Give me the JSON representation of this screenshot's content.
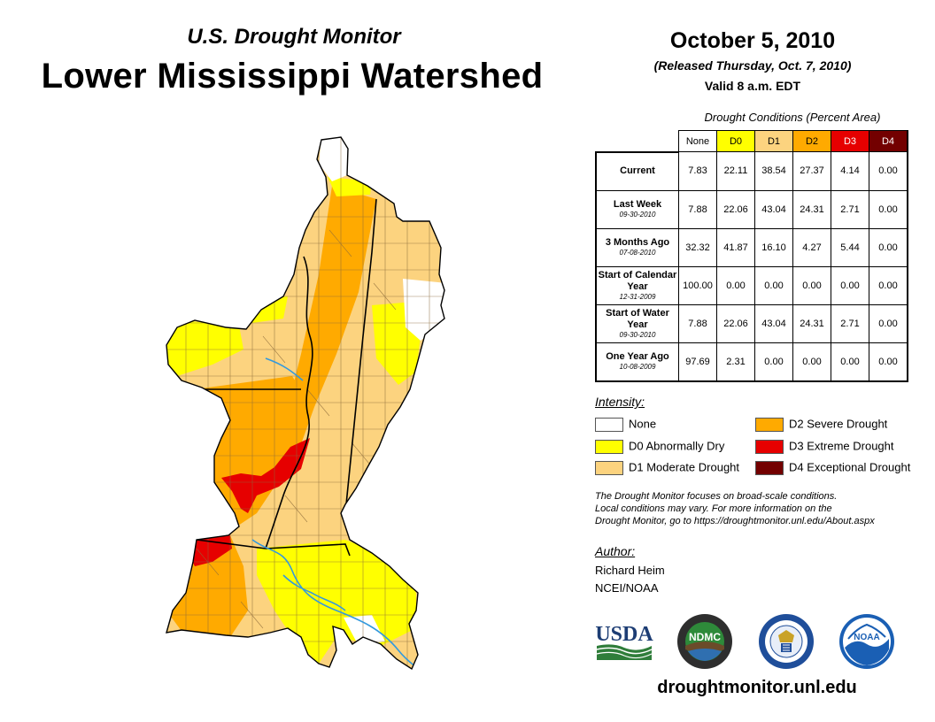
{
  "header": {
    "subtitle": "U.S. Drought Monitor",
    "title": "Lower Mississippi Watershed",
    "date": "October 5, 2010",
    "released": "(Released Thursday, Oct. 7, 2010)",
    "valid": "Valid 8 a.m. EDT"
  },
  "table": {
    "caption": "Drought Conditions (Percent Area)",
    "columns": [
      "None",
      "D0",
      "D1",
      "D2",
      "D3",
      "D4"
    ],
    "rows": [
      {
        "label": "Current",
        "date": "",
        "values": [
          "7.83",
          "22.11",
          "38.54",
          "27.37",
          "4.14",
          "0.00"
        ]
      },
      {
        "label": "Last Week",
        "date": "09-30-2010",
        "values": [
          "7.88",
          "22.06",
          "43.04",
          "24.31",
          "2.71",
          "0.00"
        ]
      },
      {
        "label": "3 Months Ago",
        "date": "07-08-2010",
        "values": [
          "32.32",
          "41.87",
          "16.10",
          "4.27",
          "5.44",
          "0.00"
        ]
      },
      {
        "label": "Start of Calendar Year",
        "date": "12-31-2009",
        "values": [
          "100.00",
          "0.00",
          "0.00",
          "0.00",
          "0.00",
          "0.00"
        ]
      },
      {
        "label": "Start of Water Year",
        "date": "09-30-2010",
        "values": [
          "7.88",
          "22.06",
          "43.04",
          "24.31",
          "2.71",
          "0.00"
        ]
      },
      {
        "label": "One Year Ago",
        "date": "10-08-2009",
        "values": [
          "97.69",
          "2.31",
          "0.00",
          "0.00",
          "0.00",
          "0.00"
        ]
      }
    ]
  },
  "legend": {
    "title": "Intensity:",
    "items": [
      {
        "label": "None",
        "color": "#ffffff"
      },
      {
        "label": "D0 Abnormally Dry",
        "color": "#ffff00"
      },
      {
        "label": "D1 Moderate Drought",
        "color": "#fcd37f"
      },
      {
        "label": "D2 Severe Drought",
        "color": "#ffaa00"
      },
      {
        "label": "D3 Extreme Drought",
        "color": "#e60000"
      },
      {
        "label": "D4 Exceptional Drought",
        "color": "#730000"
      }
    ]
  },
  "note": {
    "line1": "The Drought Monitor focuses on broad-scale conditions.",
    "line2": "Local conditions may vary. For more information on the",
    "line3": "Drought Monitor, go to https://droughtmonitor.unl.edu/About.aspx"
  },
  "author": {
    "title": "Author:",
    "name": "Richard Heim",
    "org": "NCEI/NOAA"
  },
  "logos": {
    "usda": "USDA",
    "ndmc": "NDMC",
    "noaa": "NOAA"
  },
  "website": "droughtmonitor.unl.edu",
  "colors": {
    "none": "#ffffff",
    "d0": "#ffff00",
    "d1": "#fcd37f",
    "d2": "#ffaa00",
    "d3": "#e60000",
    "d4": "#730000",
    "river": "#3399dd"
  }
}
